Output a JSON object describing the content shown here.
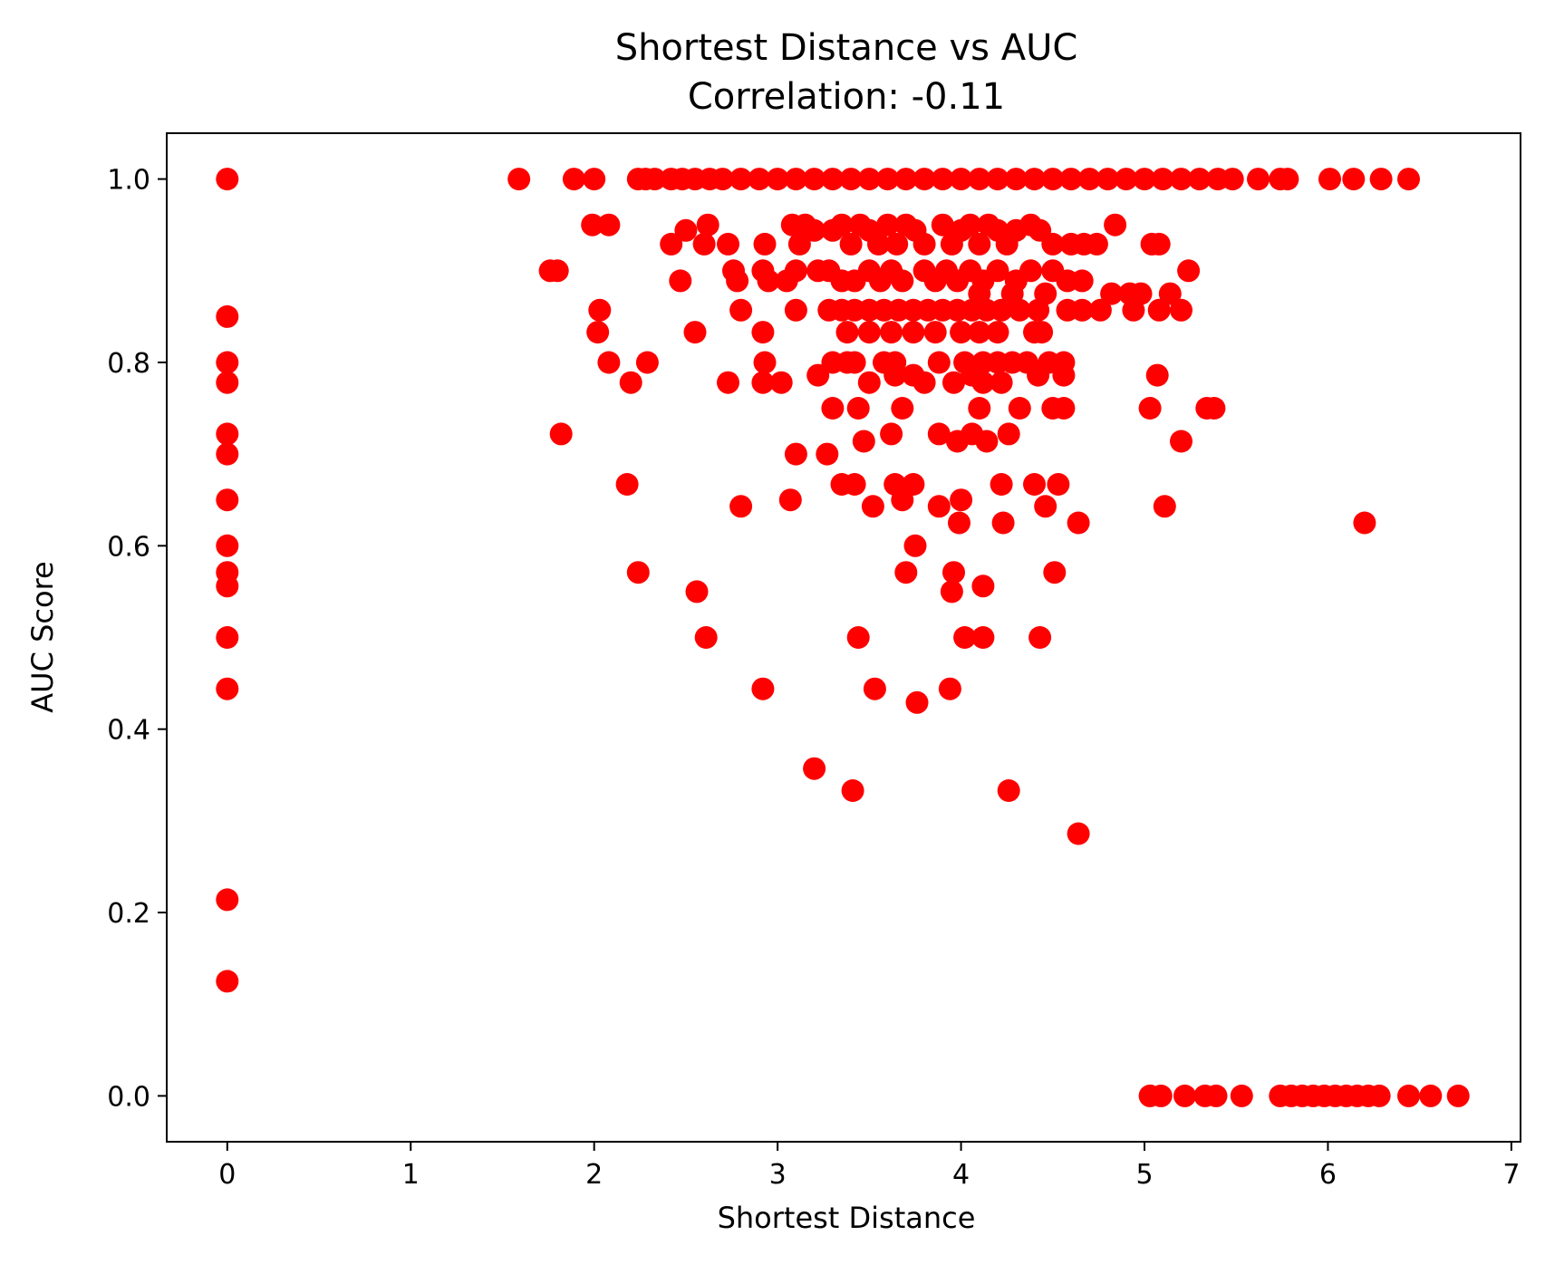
{
  "chart_data": {
    "type": "scatter",
    "title": "Shortest Distance vs AUC",
    "subtitle": "Correlation: -0.11",
    "xlabel": "Shortest Distance",
    "ylabel": "AUC Score",
    "xlim": [
      -0.33,
      7.05
    ],
    "ylim": [
      -0.05,
      1.05
    ],
    "xticks": [
      "0",
      "1",
      "2",
      "3",
      "4",
      "5",
      "6",
      "7"
    ],
    "yticks": [
      "0.0",
      "0.2",
      "0.4",
      "0.6",
      "0.8",
      "1.0"
    ],
    "grid": false,
    "marker_color": "#ff0000",
    "points": [
      [
        0,
        1.0
      ],
      [
        0,
        0.85
      ],
      [
        0,
        0.8
      ],
      [
        0,
        0.778
      ],
      [
        0,
        0.722
      ],
      [
        0,
        0.7
      ],
      [
        0,
        0.65
      ],
      [
        0,
        0.6
      ],
      [
        0,
        0.571
      ],
      [
        0,
        0.556
      ],
      [
        0,
        0.5
      ],
      [
        0,
        0.444
      ],
      [
        0,
        0.214
      ],
      [
        0,
        0.125
      ],
      [
        1.59,
        1.0
      ],
      [
        1.89,
        1.0
      ],
      [
        2.0,
        1.0
      ],
      [
        2.24,
        1.0
      ],
      [
        2.28,
        1.0
      ],
      [
        2.33,
        1.0
      ],
      [
        2.42,
        1.0
      ],
      [
        2.48,
        1.0
      ],
      [
        2.55,
        1.0
      ],
      [
        2.63,
        1.0
      ],
      [
        2.7,
        1.0
      ],
      [
        2.8,
        1.0
      ],
      [
        2.9,
        1.0
      ],
      [
        3.0,
        1.0
      ],
      [
        3.1,
        1.0
      ],
      [
        3.2,
        1.0
      ],
      [
        3.3,
        1.0
      ],
      [
        3.4,
        1.0
      ],
      [
        3.5,
        1.0
      ],
      [
        3.6,
        1.0
      ],
      [
        3.7,
        1.0
      ],
      [
        3.8,
        1.0
      ],
      [
        3.9,
        1.0
      ],
      [
        4.0,
        1.0
      ],
      [
        4.1,
        1.0
      ],
      [
        4.2,
        1.0
      ],
      [
        4.3,
        1.0
      ],
      [
        4.4,
        1.0
      ],
      [
        4.5,
        1.0
      ],
      [
        4.6,
        1.0
      ],
      [
        4.7,
        1.0
      ],
      [
        4.8,
        1.0
      ],
      [
        4.9,
        1.0
      ],
      [
        5.0,
        1.0
      ],
      [
        5.1,
        1.0
      ],
      [
        5.2,
        1.0
      ],
      [
        5.3,
        1.0
      ],
      [
        5.4,
        1.0
      ],
      [
        5.48,
        1.0
      ],
      [
        5.62,
        1.0
      ],
      [
        5.74,
        1.0
      ],
      [
        5.78,
        1.0
      ],
      [
        6.01,
        1.0
      ],
      [
        6.14,
        1.0
      ],
      [
        6.29,
        1.0
      ],
      [
        6.44,
        1.0
      ],
      [
        1.99,
        0.95
      ],
      [
        2.08,
        0.95
      ],
      [
        2.42,
        0.929
      ],
      [
        2.5,
        0.944
      ],
      [
        2.6,
        0.929
      ],
      [
        2.62,
        0.95
      ],
      [
        2.73,
        0.929
      ],
      [
        2.93,
        0.929
      ],
      [
        3.08,
        0.95
      ],
      [
        3.12,
        0.929
      ],
      [
        3.15,
        0.95
      ],
      [
        3.2,
        0.944
      ],
      [
        3.3,
        0.944
      ],
      [
        3.35,
        0.95
      ],
      [
        3.4,
        0.929
      ],
      [
        3.45,
        0.95
      ],
      [
        3.5,
        0.944
      ],
      [
        3.55,
        0.929
      ],
      [
        3.6,
        0.95
      ],
      [
        3.65,
        0.929
      ],
      [
        3.7,
        0.95
      ],
      [
        3.75,
        0.944
      ],
      [
        3.8,
        0.929
      ],
      [
        3.9,
        0.95
      ],
      [
        3.95,
        0.929
      ],
      [
        4.0,
        0.944
      ],
      [
        4.05,
        0.95
      ],
      [
        4.1,
        0.929
      ],
      [
        4.15,
        0.95
      ],
      [
        4.2,
        0.944
      ],
      [
        4.25,
        0.929
      ],
      [
        4.3,
        0.944
      ],
      [
        4.38,
        0.95
      ],
      [
        4.43,
        0.944
      ],
      [
        4.5,
        0.929
      ],
      [
        4.6,
        0.929
      ],
      [
        4.67,
        0.929
      ],
      [
        4.74,
        0.929
      ],
      [
        4.84,
        0.95
      ],
      [
        5.04,
        0.929
      ],
      [
        5.08,
        0.929
      ],
      [
        1.76,
        0.9
      ],
      [
        1.8,
        0.9
      ],
      [
        2.76,
        0.9
      ],
      [
        2.78,
        0.889
      ],
      [
        2.92,
        0.9
      ],
      [
        2.95,
        0.889
      ],
      [
        3.05,
        0.889
      ],
      [
        3.1,
        0.9
      ],
      [
        3.22,
        0.9
      ],
      [
        3.28,
        0.9
      ],
      [
        3.35,
        0.889
      ],
      [
        3.42,
        0.889
      ],
      [
        3.5,
        0.9
      ],
      [
        3.56,
        0.889
      ],
      [
        3.62,
        0.9
      ],
      [
        3.68,
        0.889
      ],
      [
        3.8,
        0.9
      ],
      [
        3.86,
        0.889
      ],
      [
        3.92,
        0.9
      ],
      [
        3.98,
        0.889
      ],
      [
        4.05,
        0.9
      ],
      [
        4.12,
        0.889
      ],
      [
        4.2,
        0.9
      ],
      [
        4.3,
        0.889
      ],
      [
        4.38,
        0.9
      ],
      [
        4.5,
        0.9
      ],
      [
        4.58,
        0.889
      ],
      [
        4.66,
        0.889
      ],
      [
        5.24,
        0.9
      ],
      [
        2.47,
        0.889
      ],
      [
        2.03,
        0.857
      ],
      [
        2.8,
        0.857
      ],
      [
        3.1,
        0.857
      ],
      [
        3.28,
        0.857
      ],
      [
        3.35,
        0.857
      ],
      [
        3.42,
        0.857
      ],
      [
        3.5,
        0.857
      ],
      [
        3.58,
        0.857
      ],
      [
        3.66,
        0.857
      ],
      [
        3.74,
        0.857
      ],
      [
        3.82,
        0.857
      ],
      [
        3.9,
        0.857
      ],
      [
        3.98,
        0.857
      ],
      [
        4.06,
        0.857
      ],
      [
        4.14,
        0.857
      ],
      [
        4.22,
        0.857
      ],
      [
        4.32,
        0.857
      ],
      [
        4.42,
        0.857
      ],
      [
        4.58,
        0.857
      ],
      [
        4.66,
        0.857
      ],
      [
        4.76,
        0.857
      ],
      [
        4.94,
        0.857
      ],
      [
        5.08,
        0.857
      ],
      [
        5.2,
        0.857
      ],
      [
        4.82,
        0.875
      ],
      [
        4.92,
        0.875
      ],
      [
        4.98,
        0.875
      ],
      [
        5.14,
        0.875
      ],
      [
        4.28,
        0.875
      ],
      [
        4.46,
        0.875
      ],
      [
        4.1,
        0.875
      ],
      [
        2.02,
        0.833
      ],
      [
        2.55,
        0.833
      ],
      [
        2.92,
        0.833
      ],
      [
        3.38,
        0.833
      ],
      [
        3.5,
        0.833
      ],
      [
        3.62,
        0.833
      ],
      [
        3.74,
        0.833
      ],
      [
        3.86,
        0.833
      ],
      [
        4.0,
        0.833
      ],
      [
        4.1,
        0.833
      ],
      [
        4.2,
        0.833
      ],
      [
        4.4,
        0.833
      ],
      [
        4.44,
        0.833
      ],
      [
        2.08,
        0.8
      ],
      [
        2.29,
        0.8
      ],
      [
        2.93,
        0.8
      ],
      [
        3.3,
        0.8
      ],
      [
        3.38,
        0.8
      ],
      [
        3.42,
        0.8
      ],
      [
        3.58,
        0.8
      ],
      [
        3.64,
        0.8
      ],
      [
        3.88,
        0.8
      ],
      [
        4.02,
        0.8
      ],
      [
        4.12,
        0.8
      ],
      [
        4.2,
        0.8
      ],
      [
        4.28,
        0.8
      ],
      [
        4.36,
        0.8
      ],
      [
        4.48,
        0.8
      ],
      [
        4.56,
        0.8
      ],
      [
        2.2,
        0.778
      ],
      [
        2.73,
        0.778
      ],
      [
        2.92,
        0.778
      ],
      [
        3.02,
        0.778
      ],
      [
        3.22,
        0.786
      ],
      [
        3.5,
        0.778
      ],
      [
        3.64,
        0.786
      ],
      [
        3.74,
        0.786
      ],
      [
        3.8,
        0.778
      ],
      [
        3.96,
        0.778
      ],
      [
        4.06,
        0.786
      ],
      [
        4.12,
        0.778
      ],
      [
        4.22,
        0.778
      ],
      [
        4.42,
        0.786
      ],
      [
        4.56,
        0.786
      ],
      [
        5.07,
        0.786
      ],
      [
        3.3,
        0.75
      ],
      [
        3.44,
        0.75
      ],
      [
        3.68,
        0.75
      ],
      [
        4.1,
        0.75
      ],
      [
        4.32,
        0.75
      ],
      [
        4.5,
        0.75
      ],
      [
        4.56,
        0.75
      ],
      [
        5.03,
        0.75
      ],
      [
        5.34,
        0.75
      ],
      [
        5.38,
        0.75
      ],
      [
        1.82,
        0.722
      ],
      [
        3.47,
        0.714
      ],
      [
        3.62,
        0.722
      ],
      [
        3.88,
        0.722
      ],
      [
        3.98,
        0.714
      ],
      [
        4.06,
        0.722
      ],
      [
        4.14,
        0.714
      ],
      [
        4.26,
        0.722
      ],
      [
        5.2,
        0.714
      ],
      [
        3.1,
        0.7
      ],
      [
        3.27,
        0.7
      ],
      [
        2.18,
        0.667
      ],
      [
        3.35,
        0.667
      ],
      [
        3.42,
        0.667
      ],
      [
        3.64,
        0.667
      ],
      [
        3.74,
        0.667
      ],
      [
        4.22,
        0.667
      ],
      [
        4.4,
        0.667
      ],
      [
        4.53,
        0.667
      ],
      [
        2.8,
        0.643
      ],
      [
        3.07,
        0.65
      ],
      [
        3.52,
        0.643
      ],
      [
        3.68,
        0.65
      ],
      [
        3.88,
        0.643
      ],
      [
        4.0,
        0.65
      ],
      [
        4.46,
        0.643
      ],
      [
        5.11,
        0.643
      ],
      [
        3.99,
        0.625
      ],
      [
        4.23,
        0.625
      ],
      [
        4.64,
        0.625
      ],
      [
        6.2,
        0.625
      ],
      [
        3.75,
        0.6
      ],
      [
        2.24,
        0.571
      ],
      [
        3.7,
        0.571
      ],
      [
        3.96,
        0.571
      ],
      [
        4.51,
        0.571
      ],
      [
        2.56,
        0.55
      ],
      [
        3.95,
        0.55
      ],
      [
        4.12,
        0.556
      ],
      [
        2.61,
        0.5
      ],
      [
        3.44,
        0.5
      ],
      [
        4.02,
        0.5
      ],
      [
        4.12,
        0.5
      ],
      [
        4.43,
        0.5
      ],
      [
        2.92,
        0.444
      ],
      [
        3.53,
        0.444
      ],
      [
        3.94,
        0.444
      ],
      [
        3.76,
        0.429
      ],
      [
        3.2,
        0.357
      ],
      [
        3.41,
        0.333
      ],
      [
        4.26,
        0.333
      ],
      [
        4.64,
        0.286
      ],
      [
        5.03,
        0.0
      ],
      [
        5.09,
        0.0
      ],
      [
        5.22,
        0.0
      ],
      [
        5.33,
        0.0
      ],
      [
        5.39,
        0.0
      ],
      [
        5.53,
        0.0
      ],
      [
        5.74,
        0.0
      ],
      [
        5.8,
        0.0
      ],
      [
        5.86,
        0.0
      ],
      [
        5.92,
        0.0
      ],
      [
        5.98,
        0.0
      ],
      [
        6.04,
        0.0
      ],
      [
        6.1,
        0.0
      ],
      [
        6.16,
        0.0
      ],
      [
        6.22,
        0.0
      ],
      [
        6.28,
        0.0
      ],
      [
        6.44,
        0.0
      ],
      [
        6.56,
        0.0
      ],
      [
        6.71,
        0.0
      ]
    ]
  }
}
